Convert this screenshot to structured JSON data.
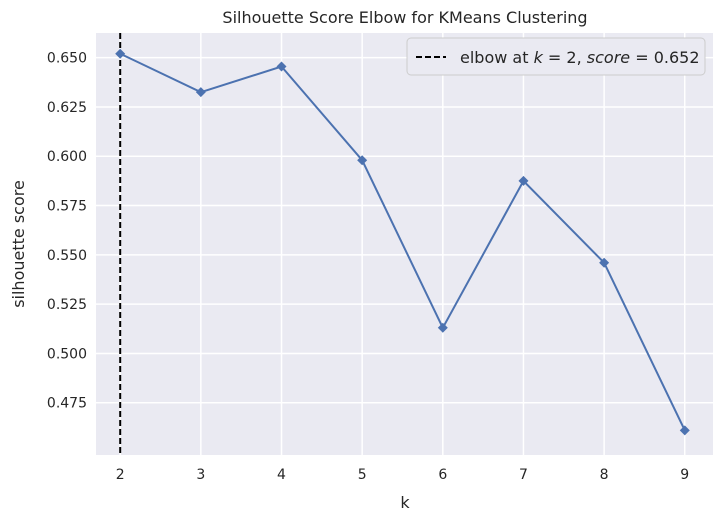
{
  "chart_data": {
    "type": "line",
    "title": "Silhouette Score Elbow for KMeans Clustering",
    "xlabel": "k",
    "ylabel": "silhouette score",
    "x": [
      2,
      3,
      4,
      5,
      6,
      7,
      8,
      9
    ],
    "series": [
      {
        "values": [
          0.652,
          0.6325,
          0.6455,
          0.598,
          0.513,
          0.5875,
          0.546,
          0.461
        ],
        "color": "#4c72b0",
        "marker": "diamond"
      }
    ],
    "xticks": [
      "2",
      "3",
      "4",
      "5",
      "6",
      "7",
      "8",
      "9"
    ],
    "yticks": [
      "0.475",
      "0.500",
      "0.525",
      "0.550",
      "0.575",
      "0.600",
      "0.625",
      "0.650"
    ],
    "xlim": [
      1.7,
      9.35
    ],
    "ylim": [
      0.4485,
      0.6625
    ],
    "elbow": {
      "k": 2,
      "score": 0.652,
      "color": "#000000",
      "style": "dashed"
    },
    "legend": {
      "position": "top-right",
      "prefix": "elbow at ",
      "k_sym": "k",
      "eq1": " = 2, ",
      "score_sym": "score",
      "eq2": " = 0.652"
    },
    "grid": true,
    "background": "#eaeaf2"
  }
}
